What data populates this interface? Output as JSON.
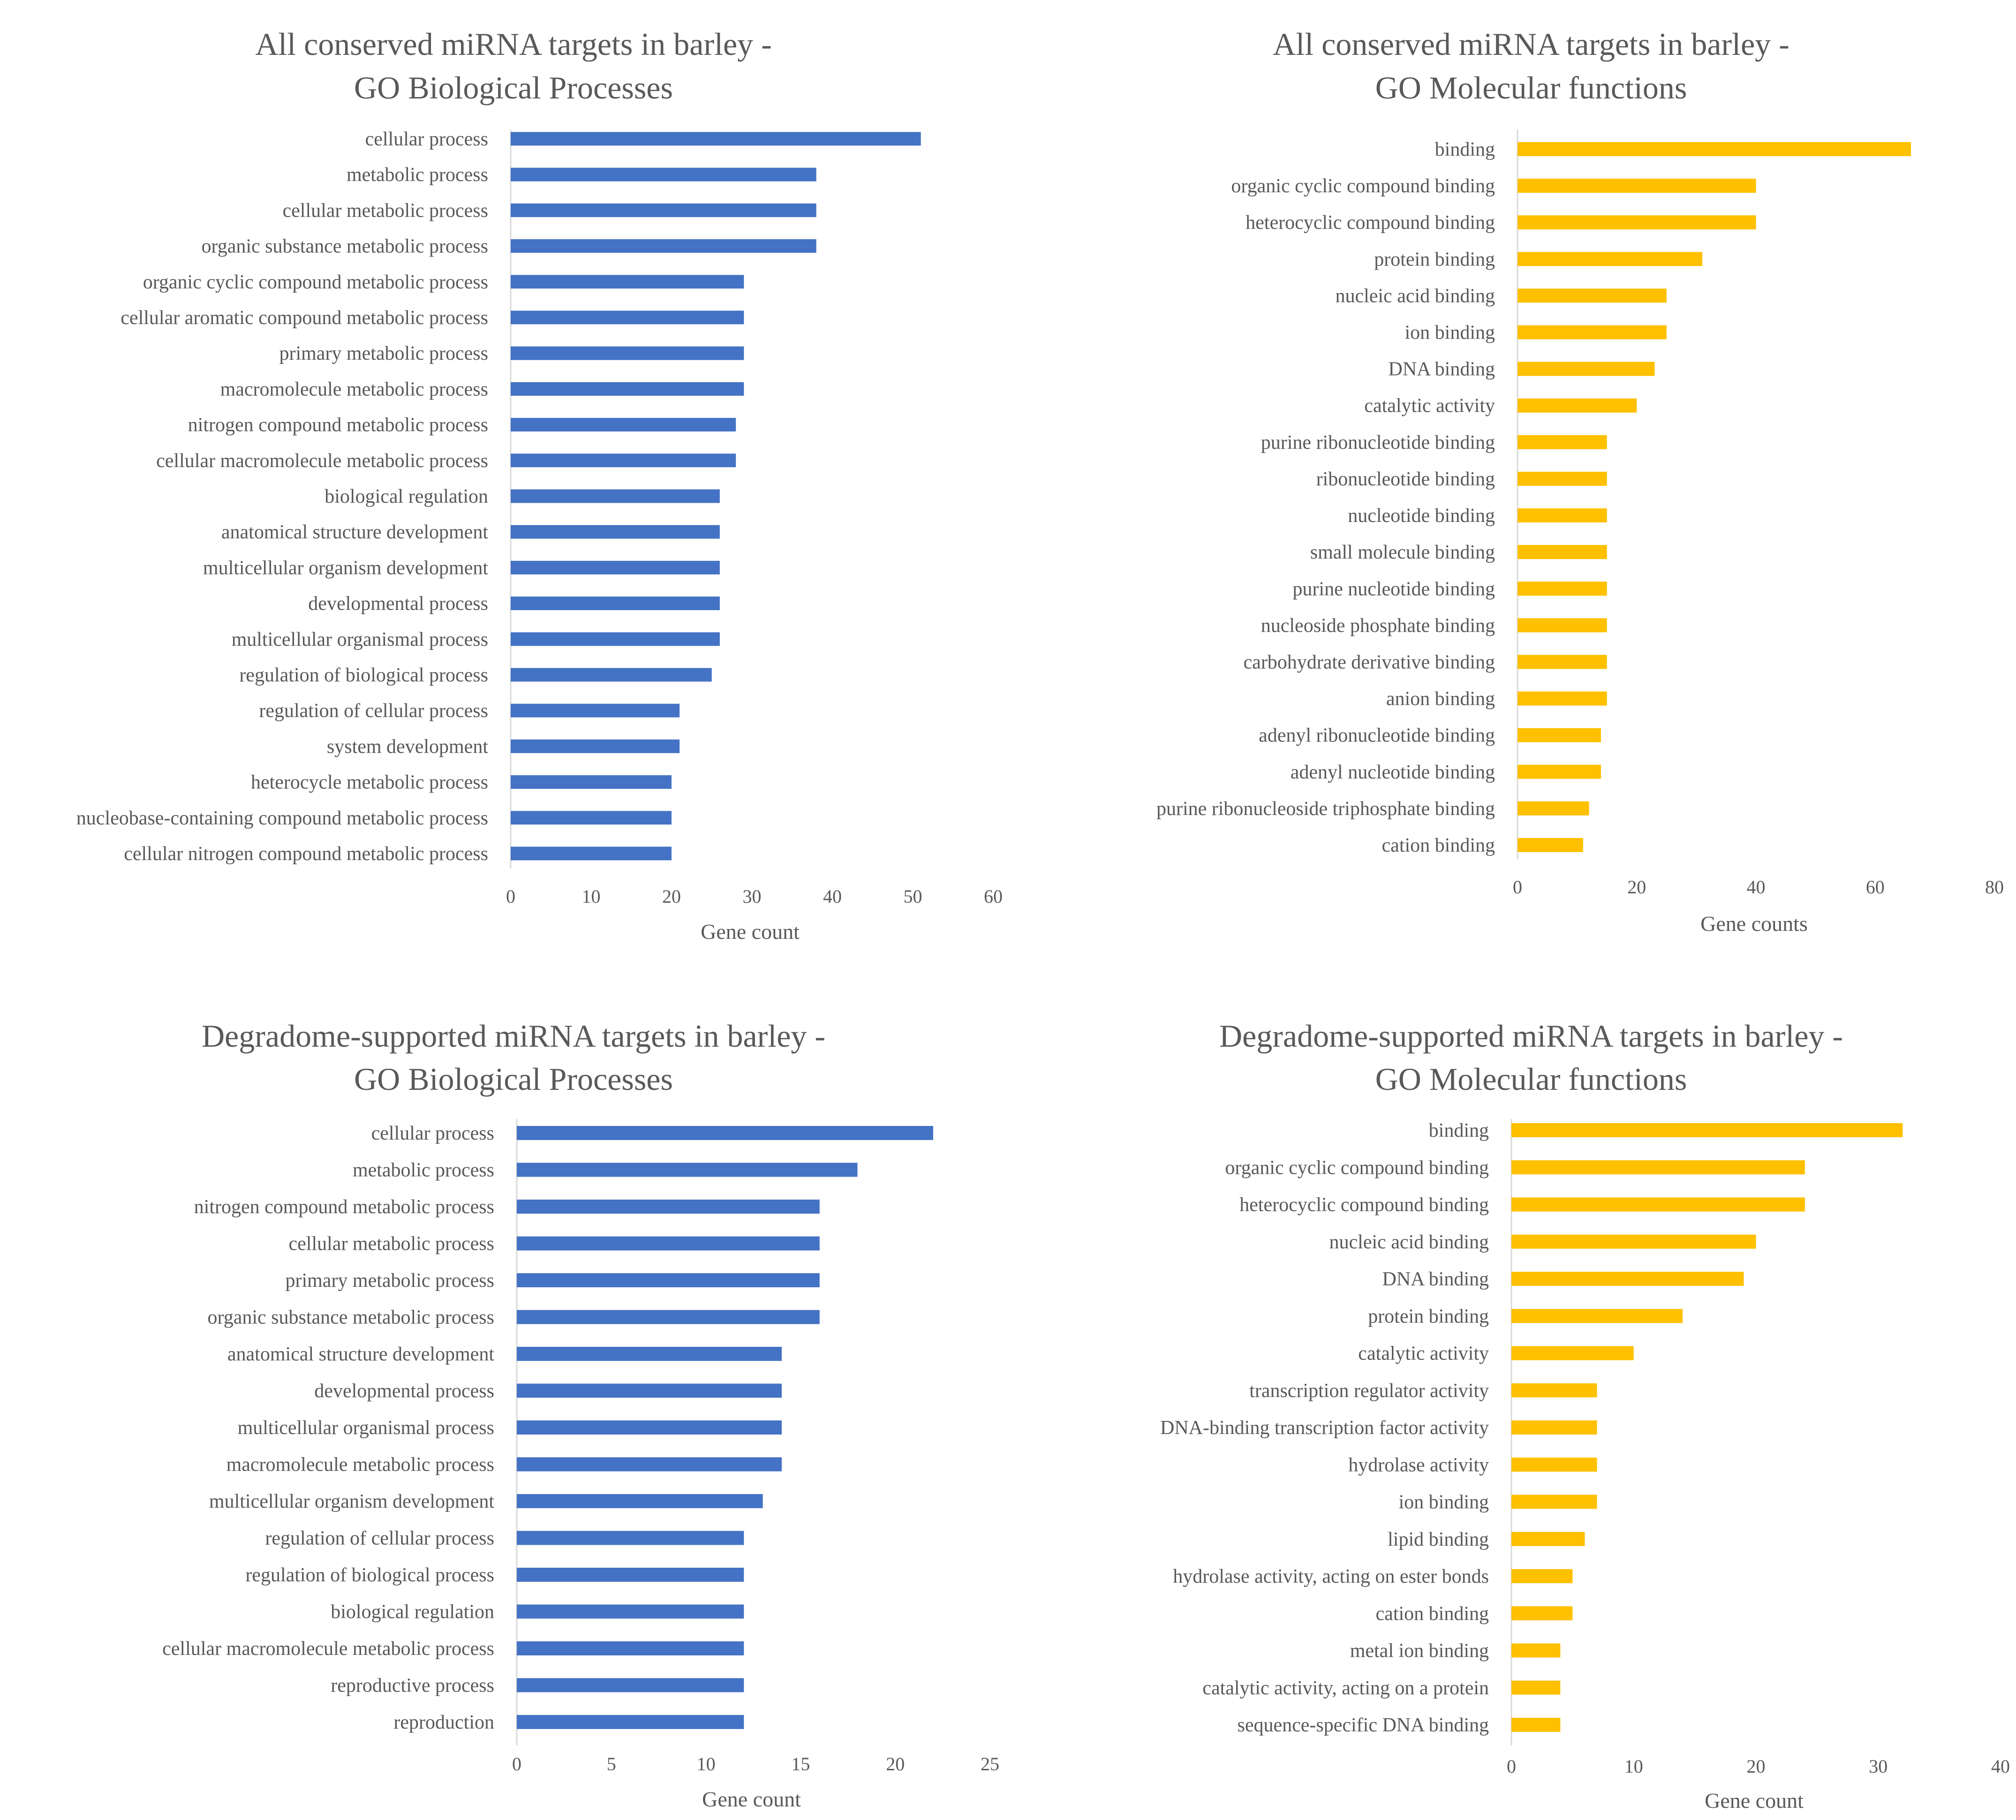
{
  "colors": {
    "blue": "#4472c4",
    "yellow": "#ffc000",
    "text": "#595959",
    "axis": "#d9d9d9"
  },
  "chart_data": [
    {
      "type": "bar",
      "orientation": "horizontal",
      "title": [
        "All conserved miRNA targets in barley -",
        "GO Biological Processes"
      ],
      "xlabel": "Gene count",
      "xlim": [
        0,
        60
      ],
      "xticks": [
        0,
        10,
        20,
        30,
        40,
        50,
        60
      ],
      "color": "blue",
      "categories": [
        "cellular process",
        "metabolic process",
        "cellular metabolic process",
        "organic substance metabolic process",
        "organic cyclic compound metabolic process",
        "cellular aromatic compound metabolic process",
        "primary metabolic process",
        "macromolecule metabolic process",
        "nitrogen compound metabolic process",
        "cellular macromolecule metabolic process",
        "biological regulation",
        "anatomical structure development",
        "multicellular organism development",
        "developmental process",
        "multicellular organismal process",
        "regulation of biological process",
        "regulation of cellular process",
        "system development",
        "heterocycle metabolic process",
        "nucleobase-containing compound metabolic process",
        "cellular nitrogen compound metabolic process"
      ],
      "values": [
        51,
        38,
        38,
        38,
        29,
        29,
        29,
        29,
        28,
        28,
        26,
        26,
        26,
        26,
        26,
        25,
        21,
        21,
        20,
        20,
        20
      ]
    },
    {
      "type": "bar",
      "orientation": "horizontal",
      "title": [
        "All conserved miRNA targets in barley -",
        "GO Molecular functions"
      ],
      "xlabel": "Gene counts",
      "xlim": [
        0,
        80
      ],
      "xticks": [
        0,
        20,
        40,
        60,
        80
      ],
      "color": "yellow",
      "categories": [
        "binding",
        "organic cyclic compound binding",
        "heterocyclic compound binding",
        "protein binding",
        "nucleic acid binding",
        "ion binding",
        "DNA binding",
        "catalytic activity",
        "purine ribonucleotide binding",
        "ribonucleotide binding",
        "nucleotide binding",
        "small molecule binding",
        "purine nucleotide binding",
        "nucleoside phosphate binding",
        "carbohydrate derivative binding",
        "anion binding",
        "adenyl ribonucleotide binding",
        "adenyl nucleotide binding",
        "purine ribonucleoside triphosphate binding",
        "cation binding"
      ],
      "values": [
        66,
        40,
        40,
        31,
        25,
        25,
        23,
        20,
        15,
        15,
        15,
        15,
        15,
        15,
        15,
        15,
        14,
        14,
        12,
        11
      ]
    },
    {
      "type": "bar",
      "orientation": "horizontal",
      "title": [
        "Degradome-supported miRNA targets in barley -",
        "GO Biological Processes"
      ],
      "xlabel": "Gene count",
      "xlim": [
        0,
        25
      ],
      "xticks": [
        0,
        5,
        10,
        15,
        20,
        25
      ],
      "color": "blue",
      "categories": [
        "cellular process",
        "metabolic process",
        "nitrogen compound metabolic process",
        "cellular metabolic process",
        "primary metabolic process",
        "organic substance metabolic process",
        "anatomical structure development",
        "developmental process",
        "multicellular organismal process",
        "macromolecule metabolic process",
        "multicellular organism development",
        "regulation of cellular process",
        "regulation of biological process",
        "biological regulation",
        "cellular macromolecule metabolic process",
        "reproductive process",
        "reproduction"
      ],
      "values": [
        22,
        18,
        16,
        16,
        16,
        16,
        14,
        14,
        14,
        14,
        13,
        12,
        12,
        12,
        12,
        12,
        12
      ]
    },
    {
      "type": "bar",
      "orientation": "horizontal",
      "title": [
        "Degradome-supported miRNA targets in barley -",
        "GO Molecular functions"
      ],
      "xlabel": "Gene count",
      "xlim": [
        0,
        40
      ],
      "xticks": [
        0,
        10,
        20,
        30,
        40
      ],
      "color": "yellow",
      "categories": [
        "binding",
        "organic cyclic compound binding",
        "heterocyclic compound binding",
        "nucleic acid binding",
        "DNA binding",
        "protein binding",
        "catalytic activity",
        "transcription regulator activity",
        "DNA-binding transcription factor activity",
        "hydrolase activity",
        "ion binding",
        "lipid binding",
        "hydrolase activity, acting on ester bonds",
        "cation binding",
        "metal ion binding",
        "catalytic activity, acting on a protein",
        "sequence-specific DNA binding"
      ],
      "values": [
        32,
        24,
        24,
        20,
        19,
        14,
        10,
        7,
        7,
        7,
        7,
        6,
        5,
        5,
        4,
        4,
        4
      ]
    }
  ]
}
